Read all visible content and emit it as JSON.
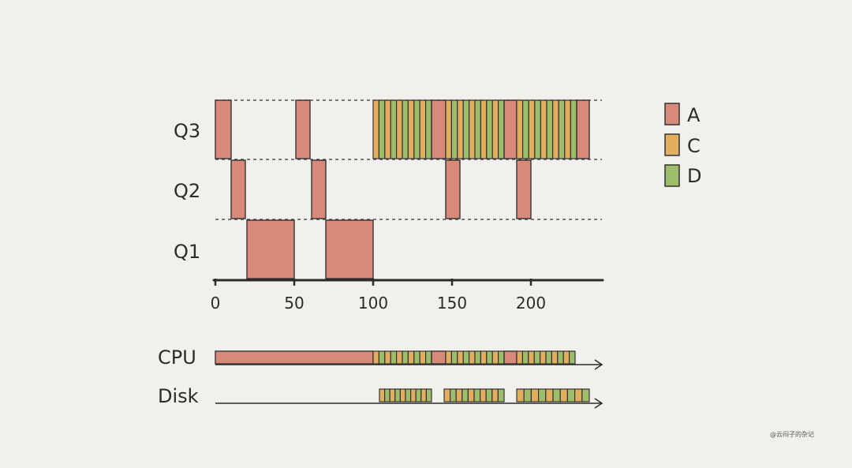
{
  "colors": {
    "A": "#d9897a",
    "C": "#e3ad5e",
    "D": "#9dbd6a",
    "stroke": "#333333",
    "dash": "#555555"
  },
  "queue_labels": [
    "Q3",
    "Q2",
    "Q1"
  ],
  "axis_ticks": [
    0,
    50,
    100,
    150,
    200
  ],
  "legend": [
    {
      "id": "A",
      "label": "A"
    },
    {
      "id": "C",
      "label": "C"
    },
    {
      "id": "D",
      "label": "D"
    }
  ],
  "timeline_labels": {
    "cpu": "CPU",
    "disk": "Disk"
  },
  "watermark": "@云闷子的杂记",
  "chart_data": {
    "type": "gantt",
    "x_range": [
      0,
      240
    ],
    "queues": {
      "Q1": [
        {
          "job": "A",
          "start": 20,
          "end": 50
        },
        {
          "job": "A",
          "start": 70,
          "end": 100
        }
      ],
      "Q2": [
        {
          "job": "A",
          "start": 10,
          "end": 19
        },
        {
          "job": "A",
          "start": 61,
          "end": 70
        },
        {
          "job": "A",
          "start": 146,
          "end": 155
        },
        {
          "job": "A",
          "start": 191,
          "end": 200
        }
      ],
      "Q3": [
        {
          "job": "A",
          "start": 0,
          "end": 10
        },
        {
          "job": "A",
          "start": 51,
          "end": 60
        },
        {
          "run": [
            "C",
            "D",
            "C",
            "D",
            "C",
            "D",
            "C",
            "D",
            "C",
            "D"
          ],
          "start": 100,
          "end": 137
        },
        {
          "job": "A",
          "start": 137,
          "end": 146
        },
        {
          "run": [
            "C",
            "D",
            "C",
            "D",
            "C",
            "D",
            "C",
            "D",
            "C",
            "D"
          ],
          "start": 146,
          "end": 183
        },
        {
          "job": "A",
          "start": 183,
          "end": 191
        },
        {
          "run": [
            "C",
            "D",
            "C",
            "D",
            "C",
            "D",
            "C",
            "D",
            "C",
            "D"
          ],
          "start": 191,
          "end": 229
        },
        {
          "job": "A",
          "start": 229,
          "end": 237
        }
      ]
    },
    "cpu": [
      {
        "job": "A",
        "start": 0,
        "end": 100
      },
      {
        "run": [
          "C",
          "D",
          "C",
          "D",
          "C",
          "D",
          "C",
          "D",
          "C",
          "D"
        ],
        "start": 100,
        "end": 137
      },
      {
        "job": "A",
        "start": 137,
        "end": 146
      },
      {
        "run": [
          "C",
          "D",
          "C",
          "D",
          "C",
          "D",
          "C",
          "D",
          "C",
          "D"
        ],
        "start": 146,
        "end": 183
      },
      {
        "job": "A",
        "start": 183,
        "end": 191
      },
      {
        "run": [
          "C",
          "D",
          "C",
          "D",
          "C",
          "D",
          "C",
          "D",
          "C",
          "D"
        ],
        "start": 191,
        "end": 228
      }
    ],
    "disk": [
      {
        "run": [
          "C",
          "D",
          "C",
          "D",
          "C",
          "D",
          "C",
          "D",
          "C",
          "D"
        ],
        "start": 104,
        "end": 137
      },
      {
        "run": [
          "C",
          "D",
          "C",
          "D",
          "C",
          "D",
          "C",
          "D",
          "C",
          "D"
        ],
        "start": 145,
        "end": 183
      },
      {
        "run": [
          "C",
          "D",
          "C",
          "D",
          "C",
          "D",
          "C",
          "D",
          "C",
          "D"
        ],
        "start": 191,
        "end": 237
      }
    ]
  }
}
